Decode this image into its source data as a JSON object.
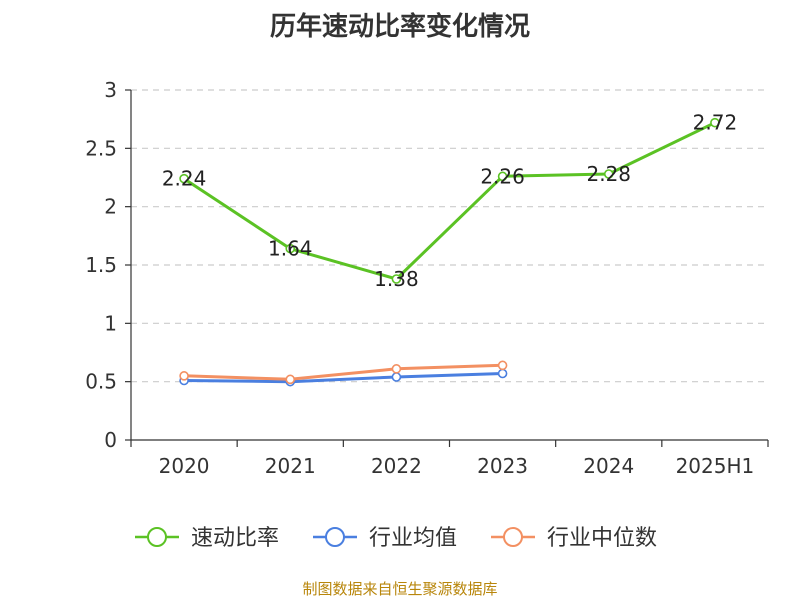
{
  "chart_data": {
    "type": "line",
    "title": "历年速动比率变化情况",
    "categories": [
      "2020",
      "2021",
      "2022",
      "2023",
      "2024",
      "2025H1"
    ],
    "ylim": [
      0,
      3
    ],
    "yticks": [
      "0",
      "0.5",
      "1",
      "1.5",
      "2",
      "2.5",
      "3"
    ],
    "grid": true,
    "legend_position": "bottom",
    "series": [
      {
        "name": "速动比率",
        "color": "#5bc224",
        "values": [
          2.24,
          1.64,
          1.38,
          2.26,
          2.28,
          2.72
        ],
        "labels": [
          "2.24",
          "1.64",
          "1.38",
          "2.26",
          "2.28",
          "2.72"
        ],
        "show_labels": true
      },
      {
        "name": "行业均值",
        "color": "#4a7fe0",
        "values": [
          0.51,
          0.5,
          0.54,
          0.57,
          null,
          null
        ],
        "show_labels": false
      },
      {
        "name": "行业中位数",
        "color": "#f39062",
        "values": [
          0.55,
          0.52,
          0.61,
          0.64,
          null,
          null
        ],
        "show_labels": false
      }
    ]
  },
  "source": "制图数据来自恒生聚源数据库"
}
